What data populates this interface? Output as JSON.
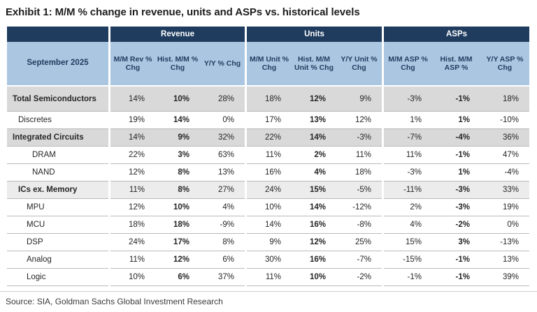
{
  "title": "Exhibit 1: M/M % change in revenue, units and ASPs vs. historical levels",
  "source": "Source: SIA, Goldman Sachs Global Investment Research",
  "colors": {
    "header_navy": "#1f3c5f",
    "header_blue": "#abc6e1",
    "band_dark": "#d9d9d9",
    "band_light": "#ececec"
  },
  "chart_data": {
    "type": "table",
    "title": "Exhibit 1: M/M % change in revenue, units and ASPs vs. historical levels",
    "period_label": "September 2025",
    "column_groups": [
      {
        "label": "Revenue"
      },
      {
        "label": "Units"
      },
      {
        "label": "ASPs"
      }
    ],
    "columns": [
      "M/M Rev % Chg",
      "Hist. M/M % Chg",
      "Y/Y % Chg",
      "M/M Unit % Chg",
      "Hist. M/M Unit % Chg",
      "Y/Y Unit % Chg",
      "M/M ASP % Chg",
      "Hist. M/M ASP %",
      "Y/Y ASP % Chg"
    ],
    "rows": [
      {
        "label": "Total Semiconductors",
        "level": 0,
        "bold": true,
        "band": "dark",
        "values": [
          "14%",
          "10%",
          "28%",
          "18%",
          "12%",
          "9%",
          "-3%",
          "-1%",
          "18%"
        ]
      },
      {
        "label": "Discretes",
        "level": 1,
        "bold": false,
        "band": "none",
        "values": [
          "19%",
          "14%",
          "0%",
          "17%",
          "13%",
          "12%",
          "1%",
          "1%",
          "-10%"
        ]
      },
      {
        "label": "Integrated Circuits",
        "level": 0,
        "bold": true,
        "band": "dark",
        "values": [
          "14%",
          "9%",
          "32%",
          "22%",
          "14%",
          "-3%",
          "-7%",
          "-4%",
          "36%"
        ]
      },
      {
        "label": "DRAM",
        "level": 3,
        "bold": false,
        "band": "none",
        "values": [
          "22%",
          "3%",
          "63%",
          "11%",
          "2%",
          "11%",
          "11%",
          "-1%",
          "47%"
        ]
      },
      {
        "label": "NAND",
        "level": 3,
        "bold": false,
        "band": "none",
        "values": [
          "12%",
          "8%",
          "13%",
          "16%",
          "4%",
          "18%",
          "-3%",
          "1%",
          "-4%"
        ]
      },
      {
        "label": "ICs ex. Memory",
        "level": 1,
        "bold": true,
        "band": "light",
        "values": [
          "11%",
          "8%",
          "27%",
          "24%",
          "15%",
          "-5%",
          "-11%",
          "-3%",
          "33%"
        ]
      },
      {
        "label": "MPU",
        "level": 2,
        "bold": false,
        "band": "none",
        "values": [
          "12%",
          "10%",
          "4%",
          "10%",
          "14%",
          "-12%",
          "2%",
          "-3%",
          "19%"
        ]
      },
      {
        "label": "MCU",
        "level": 2,
        "bold": false,
        "band": "none",
        "values": [
          "18%",
          "18%",
          "-9%",
          "14%",
          "16%",
          "-8%",
          "4%",
          "-2%",
          "0%"
        ]
      },
      {
        "label": "DSP",
        "level": 2,
        "bold": false,
        "band": "none",
        "values": [
          "24%",
          "17%",
          "8%",
          "9%",
          "12%",
          "25%",
          "15%",
          "3%",
          "-13%"
        ]
      },
      {
        "label": "Analog",
        "level": 2,
        "bold": false,
        "band": "none",
        "values": [
          "11%",
          "12%",
          "6%",
          "30%",
          "16%",
          "-7%",
          "-15%",
          "-1%",
          "13%"
        ]
      },
      {
        "label": "Logic",
        "level": 2,
        "bold": false,
        "band": "none",
        "values": [
          "10%",
          "6%",
          "37%",
          "11%",
          "10%",
          "-2%",
          "-1%",
          "-1%",
          "39%"
        ]
      }
    ]
  }
}
